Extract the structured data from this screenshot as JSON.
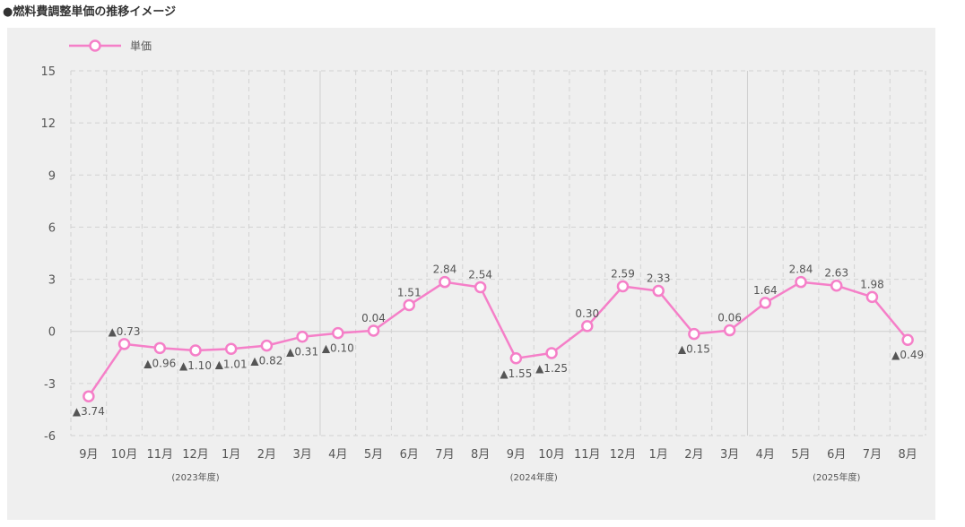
{
  "page": {
    "title": "●燃料費調整単価の推移イメージ"
  },
  "legend": {
    "label": "単価"
  },
  "chart_data": {
    "type": "line",
    "categories": [
      "9月",
      "10月",
      "11月",
      "12月",
      "1月",
      "2月",
      "3月",
      "4月",
      "5月",
      "6月",
      "7月",
      "8月",
      "9月",
      "10月",
      "11月",
      "12月",
      "1月",
      "2月",
      "3月",
      "4月",
      "5月",
      "6月",
      "7月",
      "8月"
    ],
    "series": [
      {
        "name": "単価",
        "values": [
          -3.74,
          -0.73,
          -0.96,
          -1.1,
          -1.01,
          -0.82,
          -0.31,
          -0.1,
          0.04,
          1.51,
          2.84,
          2.54,
          -1.55,
          -1.25,
          0.3,
          2.59,
          2.33,
          -0.15,
          0.06,
          1.64,
          2.84,
          2.63,
          1.98,
          -0.49
        ],
        "labels": [
          "▲3.74",
          "▲0.73",
          "▲0.96",
          "▲1.10",
          "▲1.01",
          "▲0.82",
          "▲0.31",
          "▲0.10",
          "0.04",
          "1.51",
          "2.84",
          "2.54",
          "▲1.55",
          "▲1.25",
          "0.30",
          "2.59",
          "2.33",
          "▲0.15",
          "0.06",
          "1.64",
          "2.84",
          "2.63",
          "1.98",
          "▲0.49"
        ]
      }
    ],
    "yticks": [
      15,
      12,
      9,
      6,
      3,
      0,
      -3,
      -6
    ],
    "ylim": [
      -6,
      15
    ],
    "groups": [
      {
        "label": "(2023年度)",
        "start": 0,
        "end": 6
      },
      {
        "label": "(2024年度)",
        "start": 7,
        "end": 18
      },
      {
        "label": "(2025年度)",
        "start": 19,
        "end": 23
      }
    ],
    "grid": true,
    "legend_position": "top-left",
    "color": "#f57fc8"
  }
}
